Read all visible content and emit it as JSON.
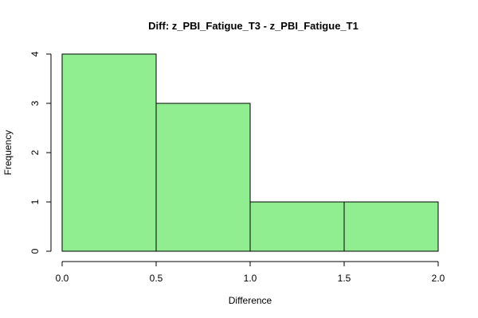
{
  "chart_data": {
    "type": "bar",
    "title": "Diff: z_PBI_Fatigue_T3 - z_PBI_Fatigue_T1",
    "xlabel": "Difference",
    "ylabel": "Frequency",
    "bins": [
      {
        "x0": 0.0,
        "x1": 0.5,
        "count": 4
      },
      {
        "x0": 0.5,
        "x1": 1.0,
        "count": 3
      },
      {
        "x0": 1.0,
        "x1": 1.5,
        "count": 1
      },
      {
        "x0": 1.5,
        "x1": 2.0,
        "count": 1
      }
    ],
    "xlim": [
      0.0,
      2.0
    ],
    "ylim": [
      0,
      4
    ],
    "x_ticks": [
      0.0,
      0.5,
      1.0,
      1.5,
      2.0
    ],
    "x_tick_labels": [
      "0.0",
      "0.5",
      "1.0",
      "1.5",
      "2.0"
    ],
    "y_ticks": [
      0,
      1,
      2,
      3,
      4
    ],
    "y_tick_labels": [
      "0",
      "1",
      "2",
      "3",
      "4"
    ],
    "bar_color": "#90EE90",
    "grid": false
  }
}
